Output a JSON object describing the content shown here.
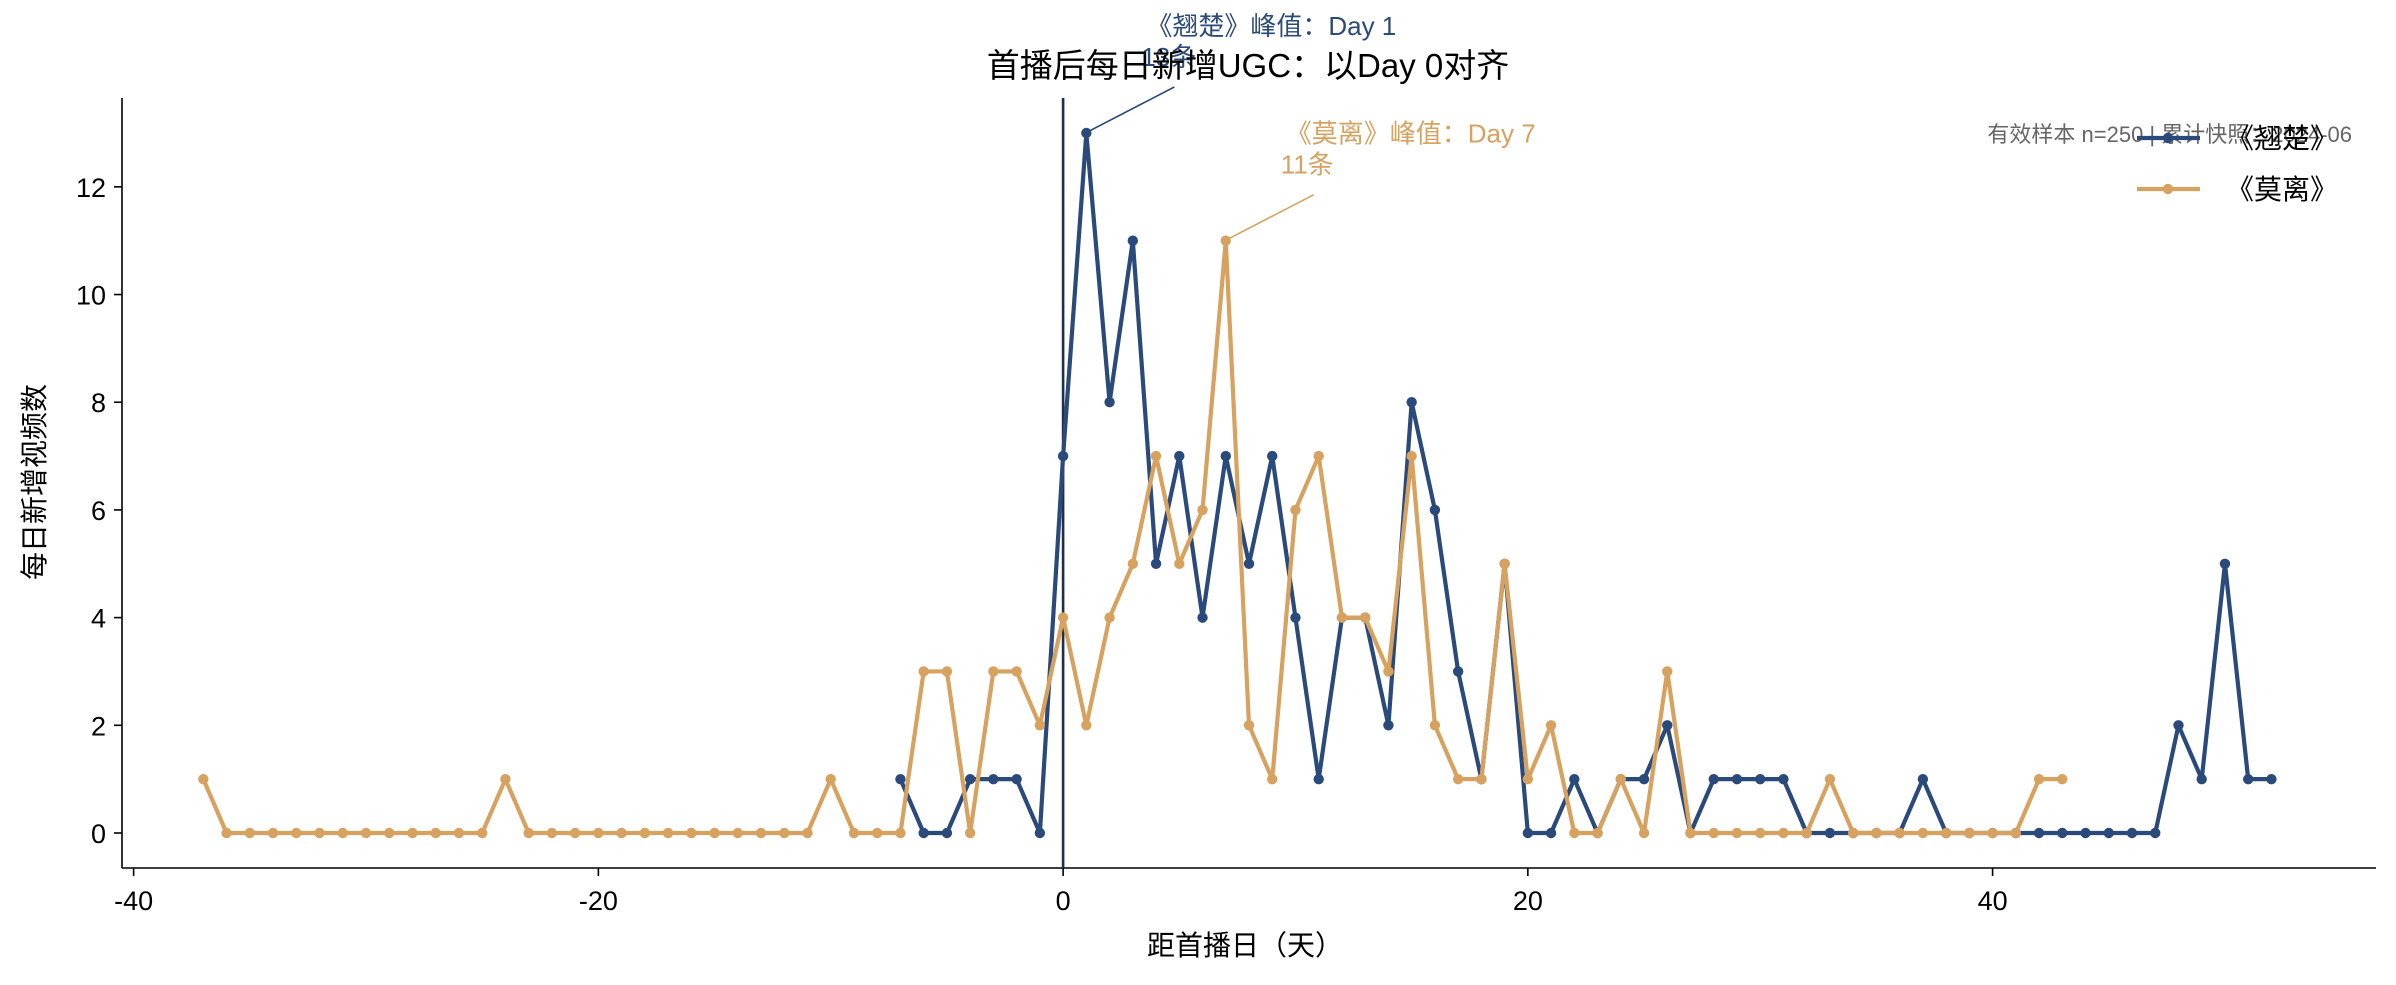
{
  "chart_data": {
    "type": "line",
    "title": "首播后每日新增UGC：以Day 0对齐",
    "xlabel": "距首播日（天）",
    "ylabel": "每日新增视频数",
    "xlim": [
      -40.5,
      56.5
    ],
    "ylim": [
      -0.65,
      13.65
    ],
    "xticks": [
      -40,
      -20,
      0,
      20,
      40
    ],
    "yticks": [
      0,
      2,
      4,
      6,
      8,
      10,
      12
    ],
    "grid": false,
    "legend_position": "top-right",
    "day0_line": 0,
    "note": "有效样本 n=250 | 累计快照：2024-06",
    "series": [
      {
        "name": "《翘楚》",
        "color": "#2b4a7c",
        "x": [
          -7,
          -6,
          -5,
          -4,
          -3,
          -2,
          -1,
          0,
          1,
          2,
          3,
          4,
          5,
          6,
          7,
          8,
          9,
          10,
          11,
          12,
          13,
          14,
          15,
          16,
          17,
          18,
          19,
          20,
          21,
          22,
          23,
          24,
          25,
          26,
          27,
          28,
          29,
          30,
          31,
          32,
          33,
          34,
          35,
          36,
          37,
          38,
          39,
          40,
          41,
          42,
          43,
          44,
          45,
          46,
          47,
          48,
          49,
          50,
          51,
          52
        ],
        "y": [
          1,
          0,
          0,
          1,
          1,
          1,
          0,
          7,
          13,
          8,
          11,
          5,
          7,
          4,
          7,
          5,
          7,
          4,
          1,
          4,
          4,
          2,
          8,
          6,
          3,
          1,
          5,
          0,
          0,
          1,
          0,
          1,
          1,
          2,
          0,
          1,
          1,
          1,
          1,
          0,
          0,
          0,
          0,
          0,
          1,
          0,
          0,
          0,
          0,
          0,
          0,
          0,
          0,
          0,
          0,
          2,
          1,
          5,
          1,
          1
        ]
      },
      {
        "name": "《莫离》",
        "color": "#d7a25f",
        "x": [
          -37,
          -36,
          -35,
          -34,
          -33,
          -32,
          -31,
          -30,
          -29,
          -28,
          -27,
          -26,
          -25,
          -24,
          -23,
          -22,
          -21,
          -20,
          -19,
          -18,
          -17,
          -16,
          -15,
          -14,
          -13,
          -12,
          -11,
          -10,
          -9,
          -8,
          -7,
          -6,
          -5,
          -4,
          -3,
          -2,
          -1,
          0,
          1,
          2,
          3,
          4,
          5,
          6,
          7,
          8,
          9,
          10,
          11,
          12,
          13,
          14,
          15,
          16,
          17,
          18,
          19,
          20,
          21,
          22,
          23,
          24,
          25,
          26,
          27,
          28,
          29,
          30,
          31,
          32,
          33,
          34,
          35,
          36,
          37,
          38,
          39,
          40,
          41,
          42,
          43
        ],
        "y": [
          1,
          0,
          0,
          0,
          0,
          0,
          0,
          0,
          0,
          0,
          0,
          0,
          0,
          1,
          0,
          0,
          0,
          0,
          0,
          0,
          0,
          0,
          0,
          0,
          0,
          0,
          0,
          1,
          0,
          0,
          0,
          3,
          3,
          0,
          3,
          3,
          2,
          4,
          2,
          4,
          5,
          7,
          5,
          6,
          11,
          2,
          1,
          6,
          7,
          4,
          4,
          3,
          7,
          2,
          1,
          1,
          5,
          1,
          2,
          0,
          0,
          1,
          0,
          3,
          0,
          0,
          0,
          0,
          0,
          0,
          1,
          0,
          0,
          0,
          0,
          0,
          0,
          0,
          0,
          1,
          1
        ]
      }
    ],
    "annotations": [
      {
        "series": 0,
        "text_line1": "《翘楚》峰值：Day 1",
        "text_line2": "13条",
        "x": 1,
        "y": 13,
        "color": "#2b4a7c"
      },
      {
        "series": 1,
        "text_line1": "《莫离》峰值：Day 7",
        "text_line2": "11条",
        "x": 7,
        "y": 11,
        "color": "#d7a25f"
      }
    ]
  }
}
